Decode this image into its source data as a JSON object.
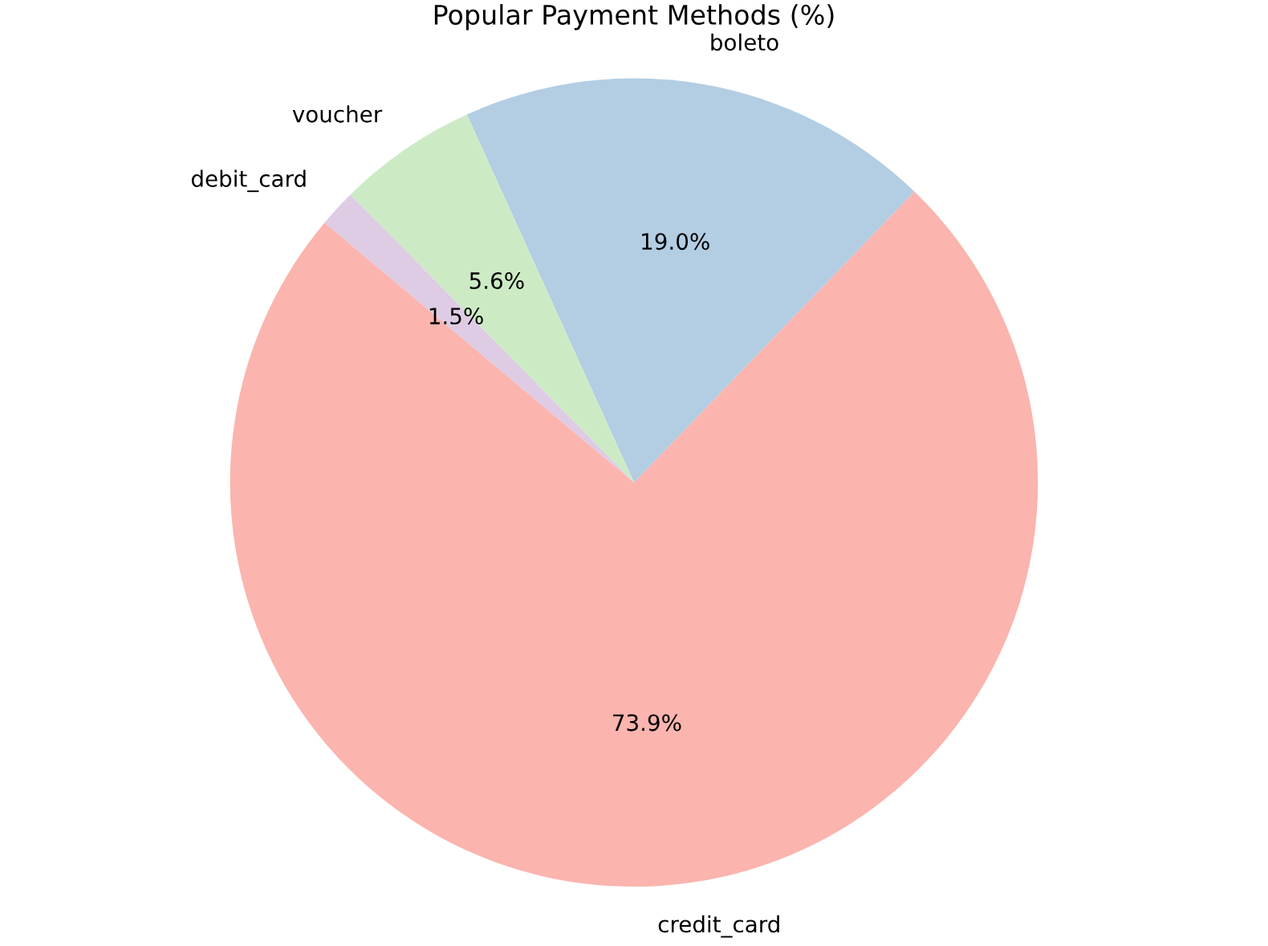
{
  "chart_data": {
    "type": "pie",
    "title": "Popular Payment Methods (%)",
    "categories": [
      "credit_card",
      "boleto",
      "voucher",
      "debit_card"
    ],
    "values": [
      73.9,
      19.0,
      5.6,
      1.5
    ],
    "value_labels": [
      "73.9%",
      "19.0%",
      "5.6%",
      "1.5%"
    ],
    "colors": [
      "#fbb4ae",
      "#b3cde3",
      "#ccebc5",
      "#decbe4"
    ]
  }
}
